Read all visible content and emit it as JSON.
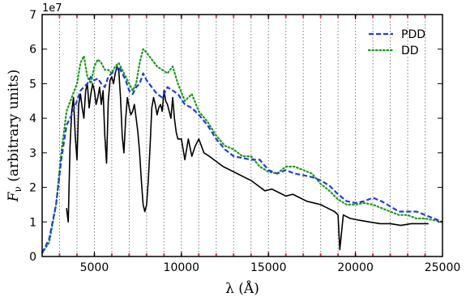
{
  "chart_data": {
    "type": "line",
    "xlabel": "λ (Å)",
    "ylabel": "F_ν (arbitrary units)",
    "ylabel_symbol": "F",
    "ylabel_sub": "ν",
    "ylabel_text": " (arbitrary units)",
    "y_multiplier_label": "1e7",
    "xlim": [
      2000,
      25000
    ],
    "ylim": [
      0,
      7
    ],
    "xticks": [
      5000,
      10000,
      15000,
      20000,
      25000
    ],
    "xtick_labels": [
      "5000",
      "10000",
      "15000",
      "20000",
      "25000"
    ],
    "yticks": [
      0,
      1,
      2,
      3,
      4,
      5,
      6,
      7
    ],
    "ytick_labels": [
      "0",
      "1",
      "2",
      "3",
      "4",
      "5",
      "6",
      "7"
    ],
    "vertical_lines": [
      3000,
      4000,
      5000,
      6000,
      7000,
      8000,
      9000,
      10000,
      11000,
      12000,
      13000,
      14000,
      15000,
      16000,
      17000,
      18000,
      19000,
      20000,
      21000,
      22000,
      23000,
      24000
    ],
    "legend_position": "top-right",
    "colors": {
      "observed": "#000000",
      "PDD": "#1f3fd6",
      "DD": "#1a9a1a",
      "gridline": "#7a7a7a",
      "tick_mark": "#e03a3a"
    },
    "series": [
      {
        "name": "PDD",
        "style": "dashed",
        "x": [
          2000,
          2400,
          2800,
          3100,
          3400,
          3700,
          4000,
          4200,
          4400,
          4600,
          4800,
          5000,
          5200,
          5400,
          5600,
          5800,
          6000,
          6200,
          6400,
          6600,
          6800,
          7000,
          7200,
          7400,
          7600,
          7800,
          8000,
          8300,
          8600,
          8900,
          9200,
          9500,
          9800,
          10200,
          10600,
          11000,
          11500,
          12000,
          12500,
          13000,
          13500,
          14000,
          14500,
          15000,
          15500,
          16000,
          16500,
          17000,
          17500,
          18000,
          18500,
          19000,
          19500,
          20000,
          20500,
          21000,
          21500,
          22000,
          22500,
          23000,
          23500,
          24000,
          24500,
          25000
        ],
        "values": [
          0.1,
          0.5,
          1.5,
          2.8,
          3.8,
          4.1,
          4.5,
          4.8,
          4.9,
          5.0,
          5.2,
          5.1,
          5.15,
          5.0,
          4.9,
          5.2,
          5.3,
          5.35,
          5.5,
          5.3,
          5.1,
          4.8,
          4.7,
          4.9,
          5.0,
          5.3,
          5.1,
          4.9,
          4.7,
          4.6,
          4.9,
          4.8,
          4.7,
          4.4,
          4.3,
          4.1,
          3.8,
          3.4,
          3.1,
          2.9,
          2.85,
          2.8,
          2.8,
          2.5,
          2.4,
          2.5,
          2.4,
          2.35,
          2.3,
          2.2,
          2.05,
          1.8,
          1.6,
          1.55,
          1.6,
          1.7,
          1.6,
          1.45,
          1.3,
          1.3,
          1.3,
          1.2,
          1.1,
          1.0
        ]
      },
      {
        "name": "DD",
        "style": "dotted",
        "x": [
          2000,
          2400,
          2800,
          3100,
          3400,
          3700,
          4000,
          4200,
          4400,
          4600,
          4800,
          5000,
          5200,
          5400,
          5600,
          5800,
          6000,
          6200,
          6400,
          6600,
          6800,
          7000,
          7200,
          7400,
          7600,
          7800,
          8000,
          8300,
          8600,
          8900,
          9200,
          9500,
          9800,
          10200,
          10600,
          11000,
          11500,
          12000,
          12500,
          13000,
          13500,
          14000,
          14500,
          15000,
          15500,
          16000,
          16500,
          17000,
          17500,
          18000,
          18500,
          19000,
          19500,
          20000,
          20500,
          21000,
          21500,
          22000,
          22500,
          23000,
          23500,
          24000,
          24500,
          25000
        ],
        "values": [
          0.1,
          0.4,
          1.5,
          3.0,
          4.2,
          4.6,
          5.0,
          5.6,
          5.8,
          5.2,
          5.0,
          5.5,
          5.7,
          5.6,
          5.4,
          5.4,
          5.3,
          5.5,
          5.6,
          5.4,
          5.2,
          5.0,
          4.8,
          5.0,
          5.6,
          6.0,
          5.9,
          5.7,
          5.5,
          5.4,
          5.3,
          5.5,
          5.0,
          4.5,
          4.7,
          4.2,
          3.9,
          3.5,
          3.2,
          3.1,
          2.9,
          2.9,
          2.6,
          2.45,
          2.4,
          2.6,
          2.6,
          2.5,
          2.4,
          2.1,
          1.9,
          1.65,
          1.5,
          1.5,
          1.55,
          1.5,
          1.4,
          1.3,
          1.2,
          1.2,
          1.1,
          1.1,
          1.05,
          1.0
        ]
      },
      {
        "name": "",
        "style": "solid",
        "x": [
          3400,
          3500,
          3600,
          3700,
          3800,
          3900,
          4000,
          4100,
          4200,
          4300,
          4400,
          4500,
          4600,
          4700,
          4800,
          4900,
          5000,
          5100,
          5200,
          5300,
          5400,
          5500,
          5600,
          5700,
          5800,
          5900,
          6000,
          6100,
          6200,
          6300,
          6400,
          6500,
          6600,
          6700,
          6800,
          6900,
          7000,
          7100,
          7200,
          7300,
          7400,
          7500,
          7600,
          7700,
          7800,
          7900,
          8000,
          8100,
          8200,
          8300,
          8400,
          8500,
          8600,
          8700,
          8800,
          8900,
          9000,
          9100,
          9200,
          9300,
          9400,
          9500,
          9600,
          9700,
          9800,
          10000,
          10200,
          10400,
          10600,
          10800,
          11000,
          11300,
          11600,
          12000,
          12400,
          12800,
          13200,
          13600,
          14000,
          14400,
          14800,
          15200,
          15600,
          16000,
          16400,
          16800,
          17200,
          17600,
          18000,
          18400,
          18800,
          19000,
          19100,
          19300,
          19700,
          20200,
          20800,
          21400,
          22000,
          22600,
          23200,
          23800,
          24200
        ],
        "values": [
          1.4,
          1.0,
          3.2,
          4.2,
          4.6,
          3.5,
          2.8,
          4.4,
          4.7,
          4.3,
          4.0,
          4.8,
          5.0,
          4.3,
          4.7,
          5.0,
          4.8,
          4.4,
          4.6,
          4.9,
          4.4,
          4.8,
          3.5,
          2.7,
          4.5,
          5.1,
          5.2,
          5.0,
          5.3,
          5.5,
          5.4,
          4.6,
          3.5,
          3.0,
          4.0,
          4.6,
          4.3,
          4.1,
          4.2,
          4.4,
          4.0,
          3.6,
          3.0,
          2.2,
          1.5,
          1.3,
          1.5,
          2.2,
          3.2,
          4.3,
          4.6,
          4.4,
          4.1,
          4.3,
          4.4,
          4.2,
          4.8,
          4.5,
          4.4,
          4.2,
          4.0,
          4.6,
          4.0,
          3.6,
          3.4,
          3.4,
          2.8,
          3.4,
          2.9,
          3.2,
          3.4,
          3.0,
          2.9,
          2.75,
          2.6,
          2.5,
          2.4,
          2.3,
          2.2,
          2.05,
          1.9,
          1.95,
          1.85,
          1.75,
          1.8,
          1.7,
          1.6,
          1.55,
          1.5,
          1.4,
          1.3,
          1.2,
          0.2,
          1.2,
          1.1,
          1.05,
          1.0,
          0.95,
          0.95,
          0.9,
          0.95,
          0.95,
          0.95
        ]
      }
    ]
  }
}
